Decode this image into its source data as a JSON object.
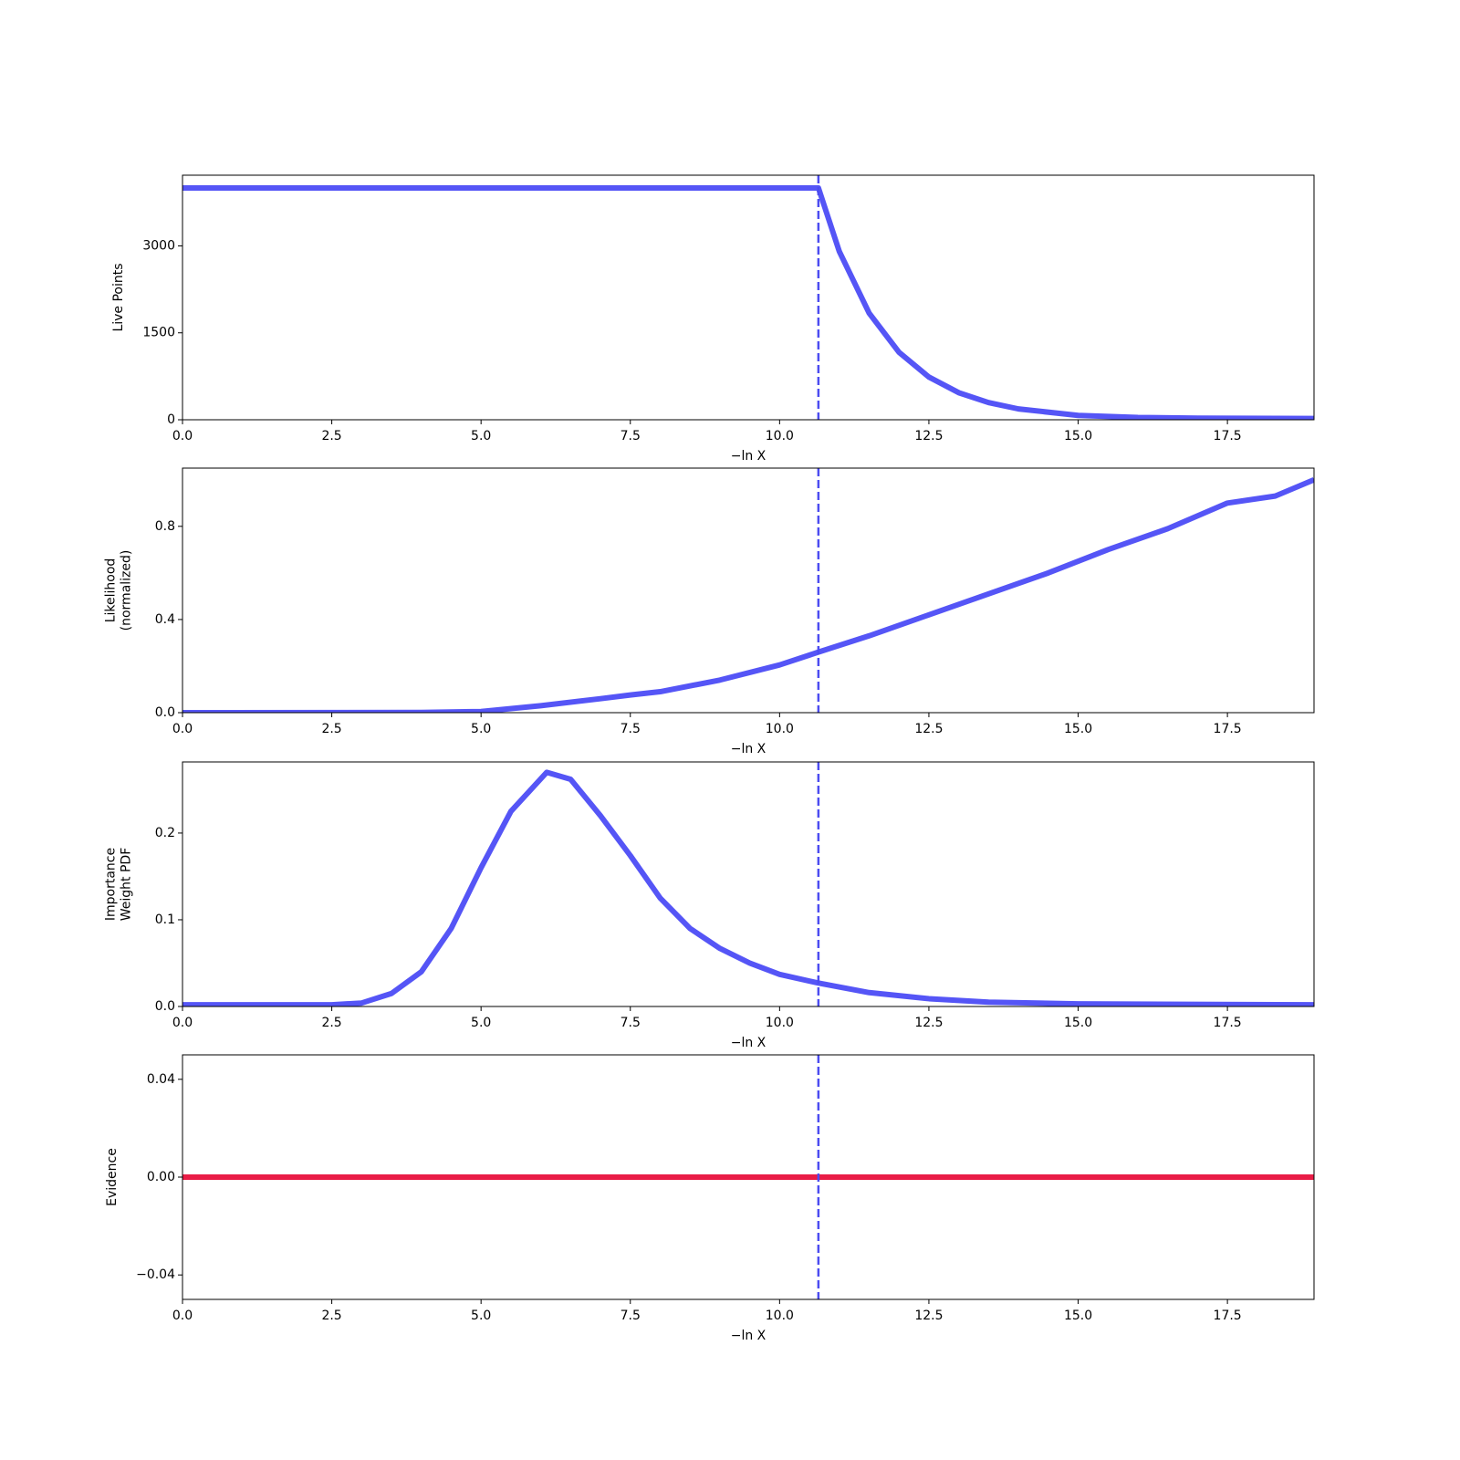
{
  "chart_data": [
    {
      "type": "line",
      "ylabel": [
        "Live Points"
      ],
      "xlabel": "−ln X",
      "xlim": [
        0,
        18.95
      ],
      "ylim": [
        0,
        4220
      ],
      "xticks": [
        {
          "value": 0,
          "label": "0.0"
        },
        2.5,
        {
          "value": 5,
          "label": "5.0"
        },
        7.5,
        {
          "value": 10,
          "label": "10.0"
        },
        12.5,
        {
          "value": 15,
          "label": "15.0"
        },
        17.5
      ],
      "yticks": [
        0,
        1500,
        3000
      ],
      "vline": 10.65,
      "vline_color": "#4c4cf0",
      "series": [
        {
          "color": "#4c4cf5",
          "x": [
            0,
            10.65,
            11,
            11.5,
            12,
            12.5,
            13,
            13.5,
            14,
            15,
            16,
            17,
            18.95
          ],
          "values": [
            4000,
            4000,
            2904,
            1839,
            1164,
            737,
            467,
            296,
            187,
            75,
            40,
            28,
            22
          ]
        }
      ]
    },
    {
      "type": "line",
      "ylabel": [
        "Likelihood",
        "(normalized)"
      ],
      "xlabel": "−ln X",
      "xlim": [
        0,
        18.95
      ],
      "ylim": [
        0,
        1.05
      ],
      "xticks": [
        {
          "value": 0,
          "label": "0.0"
        },
        2.5,
        {
          "value": 5,
          "label": "5.0"
        },
        7.5,
        {
          "value": 10,
          "label": "10.0"
        },
        12.5,
        {
          "value": 15,
          "label": "15.0"
        },
        17.5
      ],
      "yticks": [
        {
          "value": 0,
          "label": "0.0"
        },
        0.4,
        0.8
      ],
      "vline": 10.65,
      "vline_color": "#4c4cf0",
      "series": [
        {
          "color": "#4c4cf5",
          "x": [
            0,
            4,
            5,
            6,
            7,
            7.5,
            8,
            9,
            10,
            10.65,
            11.5,
            12.5,
            13.5,
            14.5,
            15.5,
            16.5,
            17.5,
            18.3,
            18.95
          ],
          "values": [
            0,
            0.001,
            0.005,
            0.03,
            0.06,
            0.076,
            0.09,
            0.14,
            0.205,
            0.26,
            0.33,
            0.42,
            0.51,
            0.6,
            0.7,
            0.79,
            0.9,
            0.93,
            1.0
          ]
        }
      ]
    },
    {
      "type": "line",
      "ylabel": [
        "Importance",
        "Weight PDF"
      ],
      "xlabel": "−ln X",
      "xlim": [
        0,
        18.95
      ],
      "ylim": [
        0,
        0.282
      ],
      "xticks": [
        {
          "value": 0,
          "label": "0.0"
        },
        2.5,
        {
          "value": 5,
          "label": "5.0"
        },
        7.5,
        {
          "value": 10,
          "label": "10.0"
        },
        12.5,
        {
          "value": 15,
          "label": "15.0"
        },
        17.5
      ],
      "yticks": [
        {
          "value": 0,
          "label": "0.0"
        },
        0.1,
        0.2
      ],
      "vline": 10.65,
      "vline_color": "#4c4cf0",
      "series": [
        {
          "color": "#4c4cf5",
          "x": [
            0,
            2.5,
            3,
            3.5,
            4,
            4.5,
            5,
            5.5,
            6.1,
            6.5,
            7,
            7.5,
            8,
            8.5,
            9,
            9.5,
            10,
            10.65,
            11.5,
            12.5,
            13.5,
            15,
            18.95
          ],
          "values": [
            0.002,
            0.002,
            0.004,
            0.015,
            0.04,
            0.09,
            0.16,
            0.225,
            0.27,
            0.262,
            0.22,
            0.174,
            0.125,
            0.09,
            0.067,
            0.05,
            0.037,
            0.027,
            0.016,
            0.009,
            0.005,
            0.003,
            0.002
          ]
        }
      ]
    },
    {
      "type": "line",
      "ylabel": [
        "Evidence"
      ],
      "xlabel": "−ln X",
      "xlim": [
        0,
        18.95
      ],
      "ylim": [
        -0.05,
        0.05
      ],
      "xticks": [
        {
          "value": 0,
          "label": "0.0"
        },
        2.5,
        {
          "value": 5,
          "label": "5.0"
        },
        7.5,
        {
          "value": 10,
          "label": "10.0"
        },
        12.5,
        {
          "value": 15,
          "label": "15.0"
        },
        17.5
      ],
      "yticks": [
        {
          "value": -0.04,
          "label": "−0.04"
        },
        {
          "value": 0,
          "label": "0.00"
        },
        0.04
      ],
      "vline": 10.65,
      "vline_color": "#4c4cf0",
      "series": [
        {
          "color": "#e8103c",
          "x": [
            0,
            18.95
          ],
          "values": [
            0,
            0
          ]
        }
      ]
    }
  ]
}
